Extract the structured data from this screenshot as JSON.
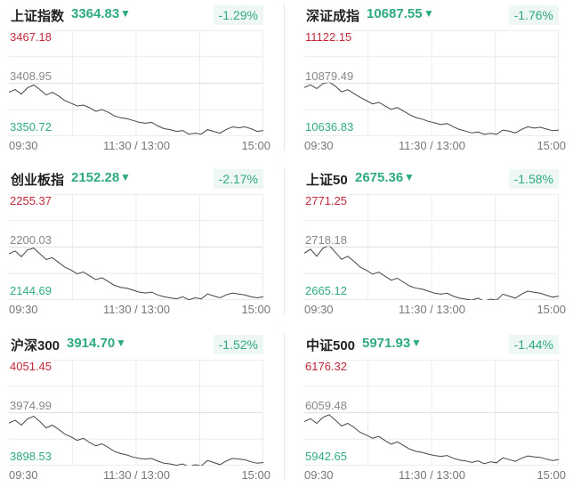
{
  "time_labels": [
    "09:30",
    "11:30 / 13:00",
    "15:00"
  ],
  "panels": [
    {
      "name": "上证指数",
      "value": "3364.83",
      "change": "-1.29%",
      "high": "3467.18",
      "mid": "3408.95",
      "low": "3350.72",
      "series": [
        3399,
        3402,
        3397,
        3404,
        3407,
        3402,
        3396,
        3399,
        3395,
        3390,
        3387,
        3384,
        3385,
        3382,
        3378,
        3380,
        3377,
        3373,
        3371,
        3370,
        3368,
        3366,
        3365,
        3366,
        3362,
        3359,
        3358,
        3356,
        3357,
        3353,
        3354,
        3353,
        3358,
        3356,
        3354,
        3358,
        3361,
        3360,
        3361,
        3359,
        3356,
        3357
      ]
    },
    {
      "name": "深证成指",
      "value": "10687.55",
      "change": "-1.76%",
      "high": "11122.15",
      "mid": "10879.49",
      "low": "10636.83",
      "series": [
        10860,
        10872,
        10855,
        10878,
        10885,
        10866,
        10840,
        10850,
        10832,
        10815,
        10800,
        10785,
        10792,
        10775,
        10760,
        10768,
        10752,
        10735,
        10722,
        10715,
        10705,
        10698,
        10690,
        10695,
        10680,
        10668,
        10660,
        10652,
        10656,
        10645,
        10650,
        10646,
        10665,
        10660,
        10652,
        10668,
        10680,
        10674,
        10678,
        10670,
        10662,
        10665
      ]
    },
    {
      "name": "创业板指",
      "value": "2152.28",
      "change": "-2.17%",
      "high": "2255.37",
      "mid": "2200.03",
      "low": "2144.69",
      "series": [
        2193,
        2196,
        2190,
        2197,
        2199,
        2193,
        2187,
        2189,
        2184,
        2179,
        2176,
        2172,
        2174,
        2170,
        2166,
        2168,
        2164,
        2160,
        2158,
        2157,
        2155,
        2153,
        2152,
        2153,
        2150,
        2148,
        2147,
        2146,
        2148,
        2145,
        2147,
        2146,
        2151,
        2149,
        2147,
        2150,
        2152,
        2151,
        2150,
        2148,
        2147,
        2148
      ]
    },
    {
      "name": "上证50",
      "value": "2675.36",
      "change": "-1.58%",
      "high": "2771.25",
      "mid": "2718.18",
      "low": "2665.12",
      "series": [
        2712,
        2716,
        2709,
        2717,
        2720,
        2713,
        2706,
        2709,
        2704,
        2698,
        2695,
        2691,
        2693,
        2689,
        2685,
        2687,
        2683,
        2679,
        2677,
        2676,
        2674,
        2672,
        2671,
        2672,
        2669,
        2667,
        2666,
        2665,
        2667,
        2664,
        2666,
        2665,
        2671,
        2669,
        2667,
        2671,
        2674,
        2673,
        2672,
        2670,
        2668,
        2669
      ]
    },
    {
      "name": "沪深300",
      "value": "3914.70",
      "change": "-1.52%",
      "high": "4051.45",
      "mid": "3974.99",
      "low": "3898.53",
      "series": [
        3960,
        3964,
        3957,
        3966,
        3970,
        3962,
        3953,
        3957,
        3951,
        3944,
        3940,
        3935,
        3938,
        3932,
        3927,
        3930,
        3925,
        3919,
        3916,
        3914,
        3911,
        3909,
        3908,
        3909,
        3905,
        3902,
        3901,
        3899,
        3901,
        3897,
        3900,
        3898,
        3906,
        3903,
        3900,
        3905,
        3909,
        3908,
        3907,
        3904,
        3902,
        3903
      ]
    },
    {
      "name": "中证500",
      "value": "5971.93",
      "change": "-1.44%",
      "high": "6176.32",
      "mid": "6059.48",
      "low": "5942.65",
      "series": [
        6040,
        6046,
        6036,
        6049,
        6055,
        6043,
        6030,
        6036,
        6027,
        6016,
        6010,
        6003,
        6007,
        5998,
        5990,
        5995,
        5987,
        5979,
        5974,
        5972,
        5968,
        5965,
        5963,
        5965,
        5959,
        5955,
        5953,
        5950,
        5953,
        5947,
        5951,
        5949,
        5960,
        5956,
        5952,
        5959,
        5964,
        5962,
        5961,
        5957,
        5954,
        5956
      ]
    }
  ]
}
